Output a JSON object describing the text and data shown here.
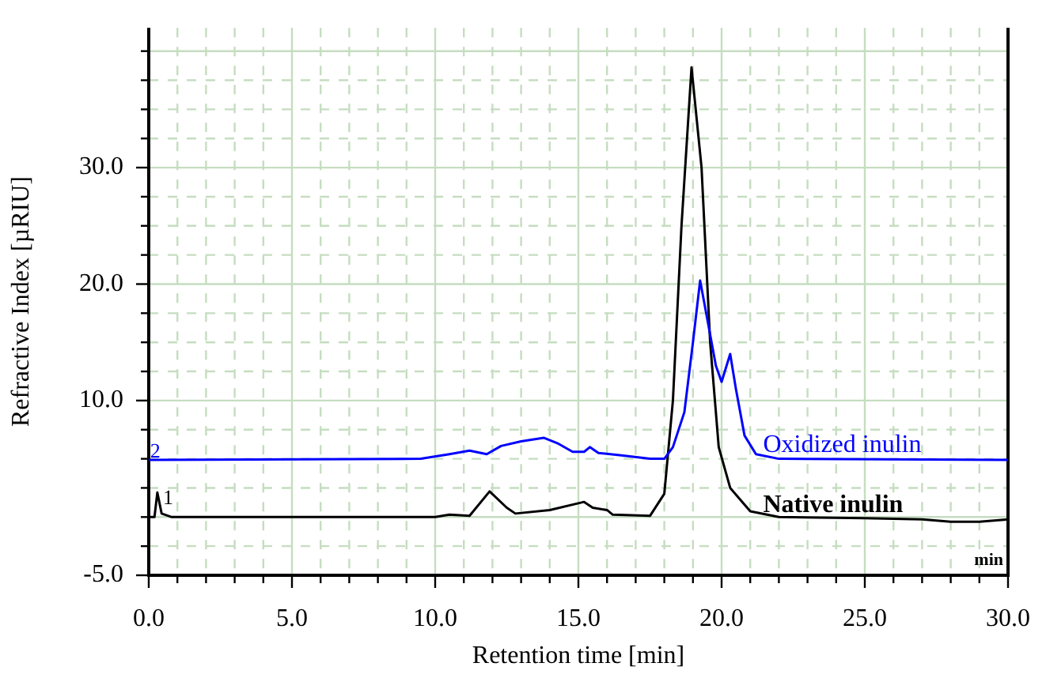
{
  "chart_data": {
    "type": "line",
    "xlabel": "Retention time [min]",
    "ylabel": "Refractive Index [µRIU]",
    "xlim": [
      0,
      30
    ],
    "ylim": [
      -5,
      42
    ],
    "xticks": [
      {
        "value": 0,
        "label": "0.0"
      },
      {
        "value": 1,
        "label": null
      },
      {
        "value": 2,
        "label": null
      },
      {
        "value": 3,
        "label": null
      },
      {
        "value": 4,
        "label": null
      },
      {
        "value": 5,
        "label": "5.0"
      },
      {
        "value": 6,
        "label": null
      },
      {
        "value": 7,
        "label": null
      },
      {
        "value": 8,
        "label": null
      },
      {
        "value": 9,
        "label": null
      },
      {
        "value": 10,
        "label": "10.0"
      },
      {
        "value": 11,
        "label": null
      },
      {
        "value": 12,
        "label": null
      },
      {
        "value": 13,
        "label": null
      },
      {
        "value": 14,
        "label": null
      },
      {
        "value": 15,
        "label": "15.0"
      },
      {
        "value": 16,
        "label": null
      },
      {
        "value": 17,
        "label": null
      },
      {
        "value": 18,
        "label": null
      },
      {
        "value": 19,
        "label": null
      },
      {
        "value": 20,
        "label": "20.0"
      },
      {
        "value": 21,
        "label": null
      },
      {
        "value": 22,
        "label": null
      },
      {
        "value": 23,
        "label": null
      },
      {
        "value": 24,
        "label": null
      },
      {
        "value": 25,
        "label": "25.0"
      },
      {
        "value": 26,
        "label": null
      },
      {
        "value": 27,
        "label": null
      },
      {
        "value": 28,
        "label": null
      },
      {
        "value": 29,
        "label": null
      },
      {
        "value": 30,
        "label": "30.0"
      }
    ],
    "yticks": [
      {
        "value": -5,
        "label": "-5.0"
      },
      {
        "value": -2.5,
        "label": null
      },
      {
        "value": 0,
        "label": null
      },
      {
        "value": 2.5,
        "label": null
      },
      {
        "value": 5,
        "label": null
      },
      {
        "value": 7.5,
        "label": null
      },
      {
        "value": 10,
        "label": "10.0"
      },
      {
        "value": 12.5,
        "label": null
      },
      {
        "value": 15,
        "label": null
      },
      {
        "value": 17.5,
        "label": null
      },
      {
        "value": 20,
        "label": "20.0"
      },
      {
        "value": 22.5,
        "label": null
      },
      {
        "value": 25,
        "label": null
      },
      {
        "value": 27.5,
        "label": null
      },
      {
        "value": 30,
        "label": "30.0"
      },
      {
        "value": 32.5,
        "label": null
      },
      {
        "value": 35,
        "label": null
      },
      {
        "value": 37.5,
        "label": null
      },
      {
        "value": 40,
        "label": null
      }
    ],
    "grid": true,
    "legend": false,
    "marker": "none",
    "line_style": "solid",
    "series": [
      {
        "name": "Oxidized inulin",
        "color": "#0000ff",
        "x": [
          0,
          9.5,
          10.5,
          11.2,
          11.8,
          12.3,
          13,
          13.8,
          14.3,
          14.8,
          15.2,
          15.4,
          15.7,
          16.5,
          17.5,
          18,
          18.3,
          18.7,
          19,
          19.25,
          19.5,
          19.8,
          20,
          20.3,
          20.5,
          20.8,
          21.2,
          22,
          30
        ],
        "values": [
          4.9,
          5,
          5.4,
          5.7,
          5.4,
          6.1,
          6.5,
          6.8,
          6.3,
          5.6,
          5.6,
          6,
          5.5,
          5.3,
          5,
          5,
          6,
          9,
          15,
          20.3,
          17,
          13,
          11.6,
          14,
          11,
          7,
          5.4,
          5,
          4.9
        ]
      },
      {
        "name": "Native inulin",
        "color": "#000000",
        "x": [
          0,
          0.2,
          0.3,
          0.45,
          0.8,
          10,
          10.5,
          11.2,
          11.9,
          12.5,
          12.8,
          14,
          15.2,
          15.5,
          16,
          16.2,
          17.5,
          18,
          18.3,
          18.6,
          18.95,
          19.3,
          19.6,
          19.9,
          20.3,
          21,
          22,
          25,
          27,
          28,
          29,
          30
        ],
        "values": [
          0,
          0,
          2.1,
          0.3,
          0,
          0,
          0.2,
          0.1,
          2.2,
          0.8,
          0.3,
          0.6,
          1.3,
          0.8,
          0.6,
          0.2,
          0.1,
          2,
          10,
          25,
          38.6,
          30,
          15,
          6,
          2.5,
          0.5,
          0,
          -0.1,
          -0.2,
          -0.4,
          -0.4,
          -0.2
        ]
      }
    ],
    "annotations": [
      {
        "text": "1",
        "x": 0.5,
        "y": 1.6
      },
      {
        "text": "2",
        "x": 0.05,
        "y": 5.6
      },
      "min"
    ]
  }
}
